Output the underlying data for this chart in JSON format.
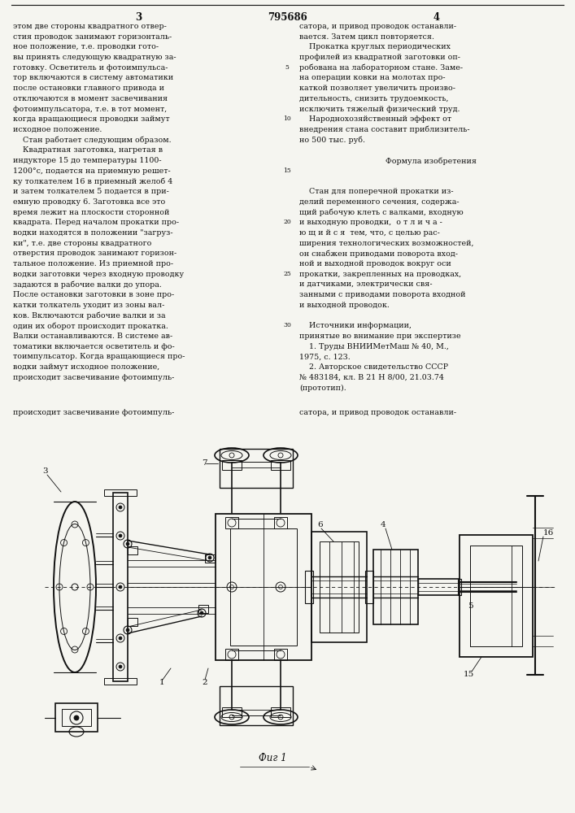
{
  "bg": "#f5f5f0",
  "fg": "#111111",
  "page_left": "3",
  "page_center": "795686",
  "page_right": "4",
  "col1": [
    "этом две стороны квадратного отвер-",
    "стия проводок занимают горизонталь-",
    "ное положение, т.е. проводки гото-",
    "вы принять следующую квадратную за-",
    "готовку. Осветитель и фотоимпульса-",
    "тор включаются в систему автоматики",
    "после остановки главного привода и",
    "отключаются в момент засвечивания",
    "фотоимпульсатора, т.е. в тот момент,",
    "когда вращающиеся проводки займут",
    "исходное положение.",
    "    Стан работает следующим образом.",
    "    Квадратная заготовка, нагретая в",
    "индукторе 15 до температуры 1100-",
    "1200°с, подается на приемную решет-",
    "ку толкателем 16 в приемный желоб 4",
    "и затем толкателем 5 подается в при-",
    "емную проводку 6. Заготовка все это",
    "время лежит на плоскости сторонной",
    "квадрата. Перед началом прокатки про-",
    "водки находятся в положении \"загруз-",
    "ки\", т.е. две стороны квадратного",
    "отверстия проводок занимают горизон-",
    "тальное положение. Из приемной про-",
    "водки заготовки через входную проводку",
    "задаются в рабочие валки до упора.",
    "После остановки заготовки в зоне про-",
    "катки толкатель уходит из зоны вал-",
    "ков. Включаются рабочие валки и за",
    "один их оборот происходит прокатка.",
    "Валки останавливаются. В системе ав-",
    "томатики включается осветитель и фо-",
    "тоимпульсатор. Когда вращающиеся про-",
    "водки займут исходное положение,",
    "происходит засвечивание фотоимпуль-"
  ],
  "col2": [
    "сатора, и привод проводок останавли-",
    "вается. Затем цикл повторяется.",
    "    Прокатка круглых периодических",
    "профилей из квадратной заготовки оп-",
    "робована на лабораторном стане. Заме-",
    "на операции ковки на молотах про-",
    "каткой позволяет увеличить произво-",
    "дительность, снизить трудоемкость,",
    "исключить тяжелый физический труд.",
    "    Народнохозяйственный эффект от",
    "внедрения стана составит приблизитель-",
    "но 500 тыс. руб.",
    "",
    "",
    "",
    "",
    "    Стан для поперечной прокатки из-",
    "делий переменного сечения, содержа-",
    "щий рабочую клеть с валками, входную",
    "и выходную проводки,  о т л и ч а -",
    "ю щ и й с я  тем, что, с целью рас-",
    "ширения технологических возможностей,",
    "он снабжен приводами поворота вход-",
    "ной и выходной проводок вокруг оси",
    "прокатки, закрепленных на проводках,",
    "и датчиками, электрически свя-",
    "занными с приводами поворота входной",
    "и выходной проводок.",
    "",
    "    Источники информации,",
    "принятые во внимание при экспертизе",
    "    1. Труды ВНИИМетМаш № 40, М.,",
    "1975, с. 123.",
    "    2. Авторское свидетельство СССР",
    "№ 483184, кл. В 21 Н 8/00, 21.03.74",
    "(прототип)."
  ],
  "lineno_col": [
    "5",
    "10",
    "15",
    "20",
    "25",
    "30"
  ],
  "formula_header": "Формула изобретения",
  "fig_caption": "Фиг 1",
  "font_body": 6.8,
  "font_hdr": 8.5,
  "font_lineno": 5.5
}
